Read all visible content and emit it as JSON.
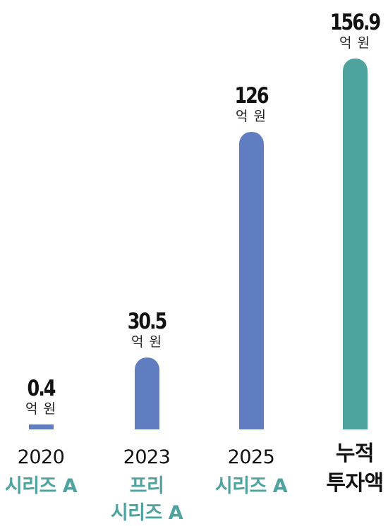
{
  "chart_data": {
    "type": "bar",
    "categories": [
      "2020",
      "2023",
      "2025",
      ""
    ],
    "category_labels": [
      [
        "시리즈 A"
      ],
      [
        "프리",
        "시리즈 A"
      ],
      [
        "시리즈 A"
      ],
      [
        "누적",
        "투자액"
      ]
    ],
    "values": [
      0.4,
      30.5,
      126,
      156.9
    ],
    "value_labels": [
      "0.4",
      "30.5",
      "126",
      "156.9"
    ],
    "unit": "억 원",
    "colors": [
      "#5f7dbf",
      "#5f7dbf",
      "#5f7dbf",
      "#4fa39f"
    ],
    "ylim": [
      0,
      156.9
    ],
    "grid": false,
    "legend": "none"
  }
}
